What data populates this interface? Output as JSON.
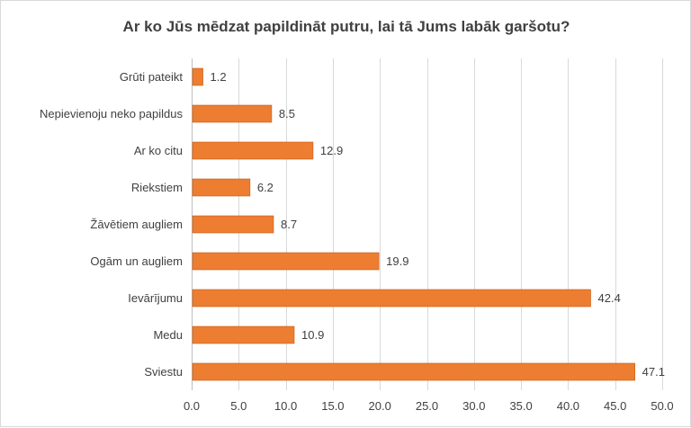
{
  "chart_data": {
    "type": "bar",
    "orientation": "horizontal",
    "title": "Ar ko Jūs mēdzat papildināt putru, lai tā Jums labāk garšotu?",
    "categories": [
      "Grūti pateikt",
      "Nepievienoju neko papildus",
      "Ar ko citu",
      "Riekstiem",
      "Žāvētiem augliem",
      "Ogām un augliem",
      "Ievārījumu",
      "Medu",
      "Sviestu"
    ],
    "values": [
      1.2,
      8.5,
      12.9,
      6.2,
      8.7,
      19.9,
      42.4,
      10.9,
      47.1
    ],
    "value_labels": [
      "1.2",
      "8.5",
      "12.9",
      "6.2",
      "8.7",
      "19.9",
      "42.4",
      "10.9",
      "47.1"
    ],
    "xlim": [
      0,
      50
    ],
    "xticks": [
      0,
      5,
      10,
      15,
      20,
      25,
      30,
      35,
      40,
      45,
      50
    ],
    "xtick_labels": [
      "0.0",
      "5.0",
      "10.0",
      "15.0",
      "20.0",
      "25.0",
      "30.0",
      "35.0",
      "40.0",
      "45.0",
      "50.0"
    ],
    "xlabel": "",
    "ylabel": "",
    "grid": true,
    "legend": "none",
    "colors": {
      "bar": "#ED7D31",
      "bar_edge": "#C55A11"
    }
  }
}
